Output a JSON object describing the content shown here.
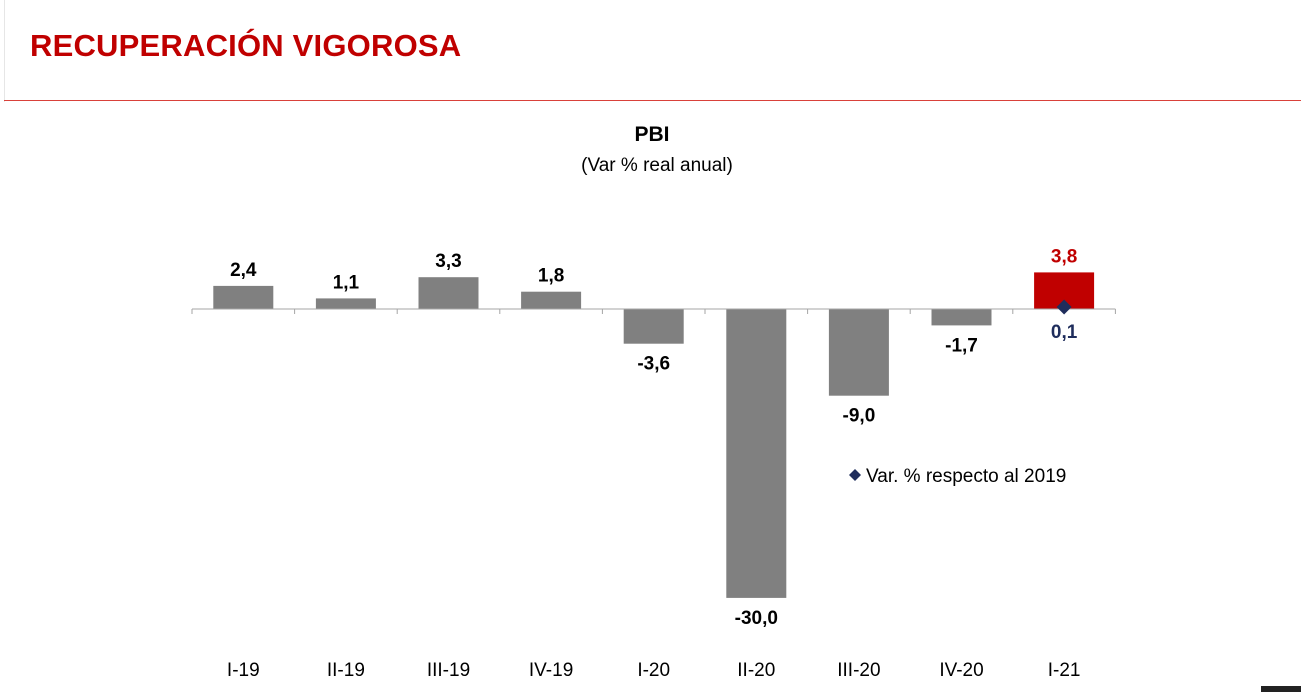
{
  "slide": {
    "title": "RECUPERACIÓN VIGOROSA"
  },
  "chart_data": {
    "type": "bar",
    "title": "PBI",
    "subtitle": "(Var % real anual)",
    "categories": [
      "I-19",
      "II-19",
      "III-19",
      "IV-19",
      "I-20",
      "II-20",
      "III-20",
      "IV-20",
      "I-21"
    ],
    "series": [
      {
        "values": [
          2.4,
          1.1,
          3.3,
          1.8,
          -3.6,
          -30.0,
          -9.0,
          -1.7,
          3.8
        ],
        "labels": [
          "2,4",
          "1,1",
          "3,3",
          "1,8",
          "-3,6",
          "-30,0",
          "-9,0",
          "-1,7",
          "3,8"
        ],
        "color": "#808080",
        "highlight_index": 8,
        "highlight_color": "#c00000"
      },
      {
        "name": "Var. % respecto al 2019",
        "marker": "diamond",
        "color": "#1f2d5c",
        "points": [
          {
            "category": "I-21",
            "value": 0.1,
            "label": "0,1"
          }
        ]
      }
    ],
    "legend": {
      "label": "Var. % respecto al 2019",
      "position": "right"
    },
    "grid": false,
    "ylim": [
      -30,
      4
    ]
  }
}
